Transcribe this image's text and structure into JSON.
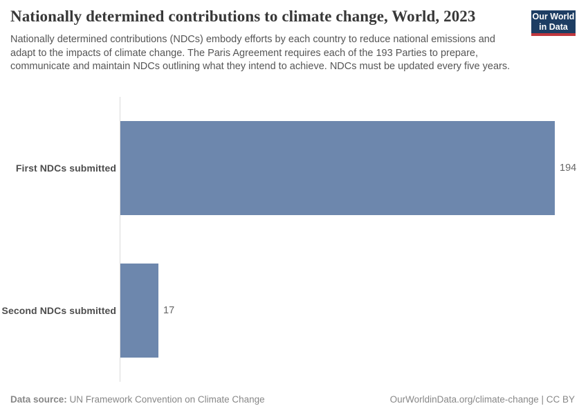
{
  "header": {
    "title": "Nationally determined contributions to climate change, World, 2023",
    "subtitle": "Nationally determined contributions (NDCs) embody efforts by each country to reduce national emissions and adapt to the impacts of climate change. The Paris Agreement requires each of the 193 Parties to prepare, communicate and maintain NDCs outlining what they intend to achieve. NDCs must be updated every five years.",
    "logo": {
      "line1": "Our World",
      "line2": "in Data"
    }
  },
  "chart_data": {
    "type": "bar",
    "orientation": "horizontal",
    "title": "Nationally determined contributions to climate change, World, 2023",
    "categories": [
      "First NDCs submitted",
      "Second NDCs submitted"
    ],
    "values": [
      194,
      17
    ],
    "xlim": [
      0,
      194
    ],
    "grid": false,
    "legend": false,
    "bar_color": "#6d87ad",
    "value_labels": [
      "194",
      "17"
    ]
  },
  "footer": {
    "source_label": "Data source:",
    "source_value": "UN Framework Convention on Climate Change",
    "attribution": "OurWorldinData.org/climate-change | CC BY"
  },
  "colors": {
    "bar": "#6d87ad",
    "axis_line": "#dadada",
    "title_text": "#383838",
    "subtitle_text": "#555555",
    "category_text": "#4d4d4d",
    "value_text": "#666666",
    "footer_text": "#878787",
    "logo_bg": "#1d3d63",
    "logo_accent": "#c0373e"
  }
}
